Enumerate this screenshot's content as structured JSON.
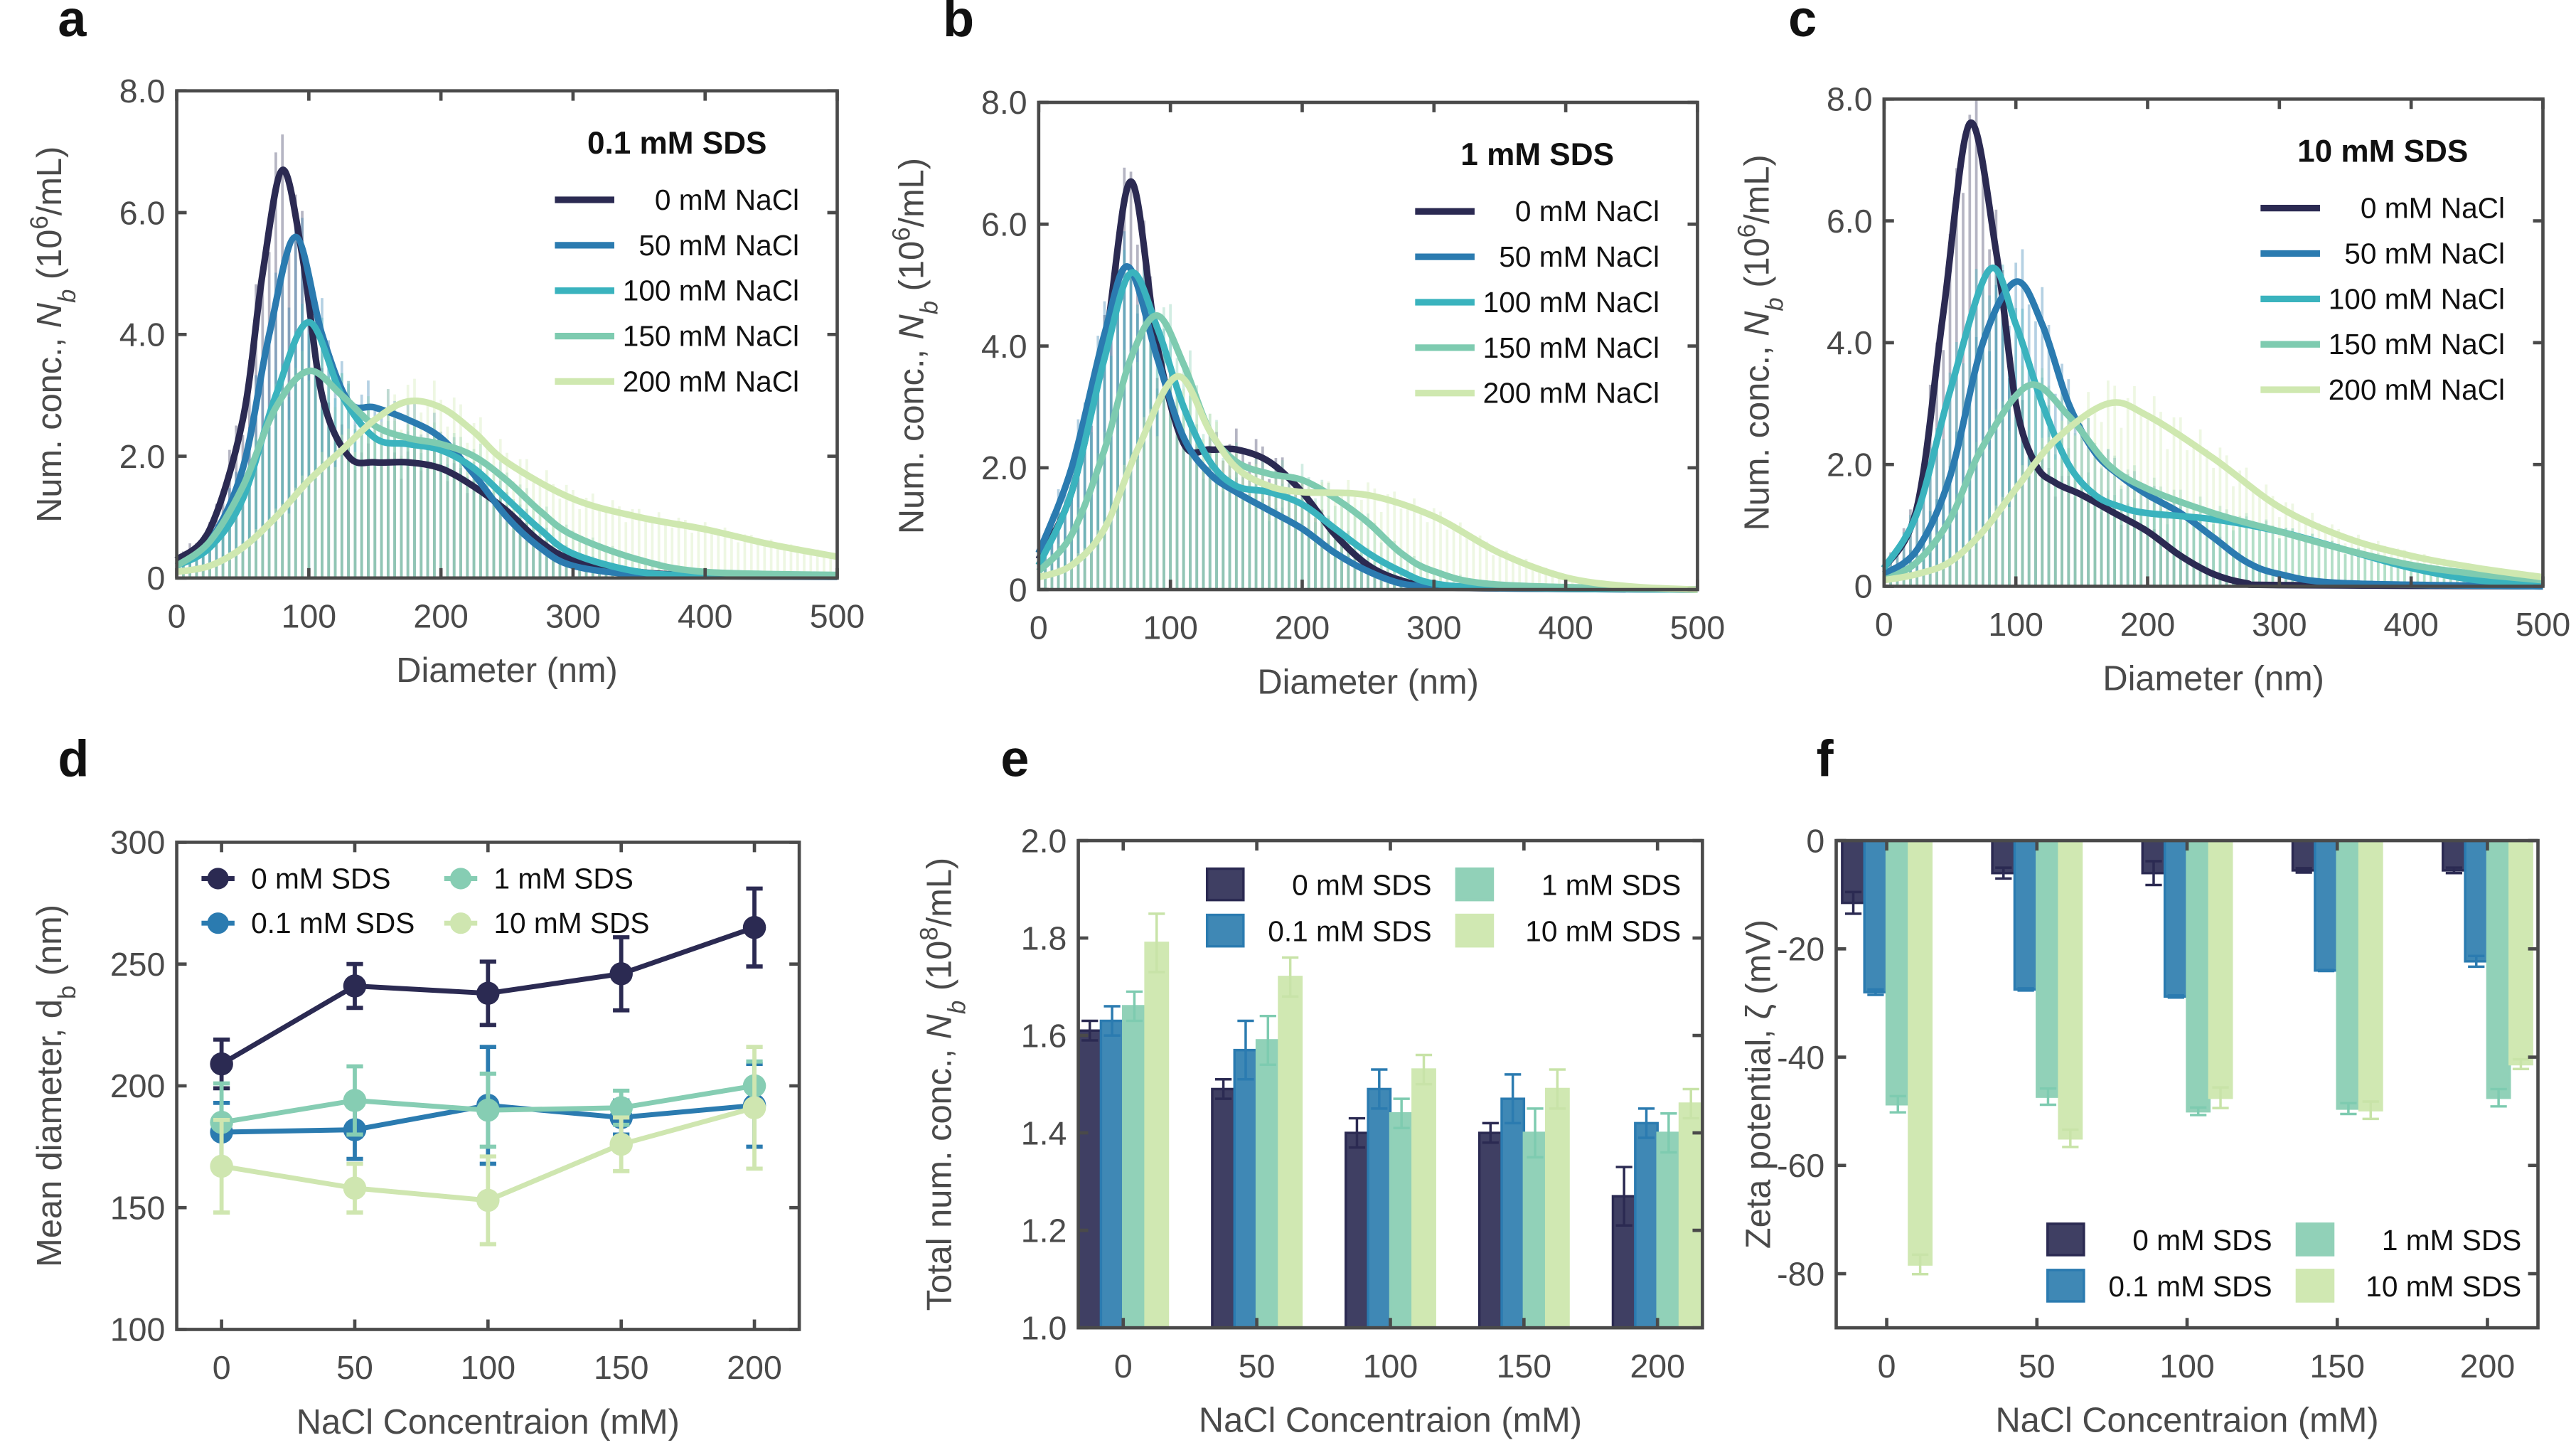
{
  "colors": {
    "0 mM NaCl": "#2b2a52",
    "50 mM NaCl": "#2b7bb0",
    "100 mM NaCl": "#3ab3be",
    "150 mM NaCl": "#7ecbb0",
    "200 mM NaCl": "#cfe8b0",
    "0 mM SDS": "#3f3f63",
    "0.1 mM SDS": "#3f88b5",
    "1 mM SDS": "#91d1b8",
    "10 mM SDS": "#d0e8b2"
  },
  "chart_data": [
    {
      "panel": "a",
      "type": "line",
      "title": "0.1 mM SDS",
      "xlabel": "Diameter (nm)",
      "ylabel": "Num. conc., N_b (10^6/mL)",
      "xlim": [
        0,
        500
      ],
      "ylim": [
        0,
        8
      ],
      "xticks": [
        "0",
        "100",
        "200",
        "300",
        "400",
        "500"
      ],
      "yticks": [
        "0",
        "2.0",
        "4.0",
        "6.0",
        "8.0"
      ],
      "legend": "top-right",
      "series": [
        {
          "name": "0 mM NaCl",
          "x": [
            0,
            25,
            50,
            65,
            80,
            95,
            110,
            130,
            150,
            175,
            200,
            225,
            250,
            275,
            300,
            350,
            400,
            500
          ],
          "y": [
            0.3,
            0.8,
            2.6,
            5.0,
            6.7,
            5.3,
            3.0,
            2.0,
            1.9,
            1.9,
            1.8,
            1.5,
            1.1,
            0.6,
            0.3,
            0.1,
            0.05,
            0.03
          ]
        },
        {
          "name": "50 mM NaCl",
          "x": [
            0,
            25,
            50,
            70,
            90,
            110,
            130,
            150,
            175,
            200,
            225,
            250,
            275,
            300,
            350,
            400,
            500
          ],
          "y": [
            0.2,
            0.6,
            1.8,
            4.0,
            5.6,
            4.0,
            2.9,
            2.8,
            2.6,
            2.3,
            1.7,
            1.0,
            0.5,
            0.2,
            0.05,
            0.03,
            0.02
          ]
        },
        {
          "name": "100 mM NaCl",
          "x": [
            0,
            25,
            50,
            75,
            100,
            125,
            150,
            175,
            200,
            225,
            250,
            275,
            300,
            350,
            400,
            500
          ],
          "y": [
            0.2,
            0.5,
            1.3,
            3.0,
            4.2,
            3.0,
            2.3,
            2.2,
            2.1,
            1.8,
            1.3,
            0.8,
            0.4,
            0.1,
            0.05,
            0.03
          ]
        },
        {
          "name": "150 mM NaCl",
          "x": [
            0,
            25,
            50,
            75,
            100,
            125,
            150,
            175,
            200,
            225,
            250,
            275,
            300,
            350,
            400,
            500
          ],
          "y": [
            0.2,
            0.6,
            1.5,
            2.8,
            3.4,
            3.0,
            2.5,
            2.3,
            2.2,
            2.0,
            1.6,
            1.1,
            0.7,
            0.3,
            0.1,
            0.05
          ]
        },
        {
          "name": "200 mM NaCl",
          "x": [
            0,
            25,
            50,
            75,
            100,
            125,
            150,
            175,
            200,
            225,
            250,
            300,
            350,
            400,
            450,
            500
          ],
          "y": [
            0.1,
            0.2,
            0.5,
            1.0,
            1.6,
            2.1,
            2.6,
            2.9,
            2.8,
            2.4,
            1.9,
            1.3,
            1.0,
            0.8,
            0.55,
            0.35
          ]
        }
      ]
    },
    {
      "panel": "b",
      "type": "line",
      "title": "1 mM SDS",
      "xlabel": "Diameter (nm)",
      "ylabel": "Num. conc., N_b (10^6/mL)",
      "xlim": [
        0,
        500
      ],
      "ylim": [
        0,
        8
      ],
      "xticks": [
        "0",
        "100",
        "200",
        "300",
        "400",
        "500"
      ],
      "yticks": [
        "0",
        "2.0",
        "4.0",
        "6.0",
        "8.0"
      ],
      "legend": "top-right",
      "series": [
        {
          "name": "0 mM NaCl",
          "x": [
            0,
            25,
            50,
            70,
            90,
            110,
            130,
            150,
            175,
            200,
            225,
            250,
            275,
            300,
            350,
            500
          ],
          "y": [
            0.5,
            1.6,
            4.0,
            6.7,
            4.0,
            2.4,
            2.3,
            2.3,
            2.1,
            1.6,
            0.9,
            0.4,
            0.15,
            0.05,
            0.02,
            0
          ]
        },
        {
          "name": "50 mM NaCl",
          "x": [
            0,
            25,
            50,
            68,
            90,
            110,
            130,
            150,
            175,
            200,
            225,
            250,
            275,
            300,
            350,
            500
          ],
          "y": [
            0.6,
            2.0,
            4.2,
            5.3,
            3.8,
            2.5,
            1.9,
            1.6,
            1.3,
            1.0,
            0.6,
            0.3,
            0.1,
            0.05,
            0.02,
            0
          ]
        },
        {
          "name": "100 mM NaCl",
          "x": [
            0,
            25,
            50,
            70,
            90,
            110,
            130,
            150,
            175,
            200,
            225,
            250,
            275,
            300,
            350,
            500
          ],
          "y": [
            0.4,
            1.6,
            3.8,
            5.2,
            4.3,
            3.0,
            2.1,
            1.7,
            1.6,
            1.4,
            1.0,
            0.6,
            0.3,
            0.1,
            0.03,
            0
          ]
        },
        {
          "name": "150 mM NaCl",
          "x": [
            0,
            25,
            50,
            70,
            90,
            110,
            130,
            150,
            175,
            200,
            225,
            250,
            275,
            300,
            350,
            500
          ],
          "y": [
            0.3,
            0.9,
            2.3,
            3.8,
            4.5,
            3.7,
            2.6,
            2.1,
            1.9,
            1.8,
            1.5,
            1.1,
            0.6,
            0.3,
            0.08,
            0
          ]
        },
        {
          "name": "200 mM NaCl",
          "x": [
            0,
            25,
            50,
            75,
            105,
            130,
            150,
            175,
            200,
            250,
            300,
            350,
            400,
            450,
            500
          ],
          "y": [
            0.2,
            0.4,
            1.0,
            2.3,
            3.5,
            2.6,
            2.0,
            1.7,
            1.6,
            1.55,
            1.2,
            0.6,
            0.2,
            0.05,
            0
          ]
        }
      ]
    },
    {
      "panel": "c",
      "type": "line",
      "title": "10 mM SDS",
      "xlabel": "Diameter (nm)",
      "ylabel": "Num. conc., N_b (10^6/mL)",
      "xlim": [
        0,
        500
      ],
      "ylim": [
        0,
        8
      ],
      "xticks": [
        "0",
        "100",
        "200",
        "300",
        "400",
        "500"
      ],
      "yticks": [
        "0",
        "2.0",
        "4.0",
        "6.0",
        "8.0"
      ],
      "legend": "top-right",
      "series": [
        {
          "name": "0 mM NaCl",
          "x": [
            0,
            25,
            45,
            65,
            85,
            100,
            115,
            130,
            150,
            175,
            200,
            225,
            250,
            275,
            300,
            500
          ],
          "y": [
            0.3,
            1.3,
            4.5,
            7.6,
            5.5,
            3.0,
            2.0,
            1.7,
            1.5,
            1.2,
            0.9,
            0.5,
            0.2,
            0.05,
            0.02,
            0
          ]
        },
        {
          "name": "50 mM NaCl",
          "x": [
            0,
            25,
            50,
            75,
            100,
            120,
            140,
            160,
            180,
            200,
            225,
            250,
            275,
            300,
            350,
            500
          ],
          "y": [
            0.2,
            0.6,
            1.8,
            4.0,
            5.0,
            4.3,
            3.0,
            2.2,
            1.8,
            1.5,
            1.2,
            0.8,
            0.4,
            0.2,
            0.05,
            0
          ]
        },
        {
          "name": "100 mM NaCl",
          "x": [
            0,
            25,
            50,
            80,
            100,
            120,
            140,
            160,
            180,
            200,
            250,
            300,
            350,
            400,
            450,
            500
          ],
          "y": [
            0.3,
            1.2,
            3.2,
            5.2,
            4.3,
            3.0,
            2.0,
            1.5,
            1.3,
            1.2,
            1.1,
            0.9,
            0.6,
            0.3,
            0.1,
            0.05
          ]
        },
        {
          "name": "150 mM NaCl",
          "x": [
            0,
            25,
            50,
            75,
            110,
            140,
            170,
            200,
            250,
            300,
            350,
            400,
            450,
            500
          ],
          "y": [
            0.1,
            0.4,
            1.1,
            2.3,
            3.3,
            2.8,
            2.0,
            1.6,
            1.2,
            0.9,
            0.6,
            0.35,
            0.2,
            0.1
          ]
        },
        {
          "name": "200 mM NaCl",
          "x": [
            0,
            25,
            50,
            75,
            100,
            130,
            170,
            200,
            250,
            300,
            350,
            400,
            450,
            500
          ],
          "y": [
            0.1,
            0.2,
            0.4,
            0.9,
            1.6,
            2.4,
            3.0,
            2.8,
            2.1,
            1.3,
            0.8,
            0.5,
            0.3,
            0.15
          ]
        }
      ]
    },
    {
      "panel": "d",
      "type": "line",
      "xlabel": "NaCl Concentraion (mM)",
      "ylabel": "Mean diameter, d_b (nm)",
      "x": [
        0,
        50,
        100,
        150,
        200
      ],
      "ylim": [
        100,
        300
      ],
      "xticks": [
        "0",
        "50",
        "100",
        "150",
        "200"
      ],
      "yticks": [
        "100",
        "150",
        "200",
        "250",
        "300"
      ],
      "legend": "top-left",
      "series": [
        {
          "name": "0 mM SDS",
          "values": [
            209,
            241,
            238,
            246,
            265
          ],
          "error": [
            10,
            9,
            13,
            15,
            16
          ]
        },
        {
          "name": "0.1 mM SDS",
          "values": [
            181,
            182,
            192,
            187,
            192
          ],
          "error": [
            12,
            12,
            24,
            7,
            17
          ]
        },
        {
          "name": "1 mM SDS",
          "values": [
            185,
            194,
            190,
            191,
            200
          ],
          "error": [
            16,
            14,
            15,
            7,
            10
          ]
        },
        {
          "name": "10 mM SDS",
          "values": [
            167,
            158,
            153,
            176,
            191
          ],
          "error": [
            19,
            10,
            18,
            11,
            25
          ]
        }
      ]
    },
    {
      "panel": "e",
      "type": "bar",
      "xlabel": "NaCl Concentraion (mM)",
      "ylabel": "Total num. conc., N_b (10^8/mL)",
      "categories": [
        "0",
        "50",
        "100",
        "150",
        "200"
      ],
      "ylim": [
        1.0,
        2.0
      ],
      "yticks": [
        "1.0",
        "1.2",
        "1.4",
        "1.6",
        "1.8",
        "2.0"
      ],
      "legend": "top-right",
      "series": [
        {
          "name": "0 mM SDS",
          "values": [
            1.61,
            1.49,
            1.4,
            1.4,
            1.27
          ],
          "error": [
            0.02,
            0.02,
            0.03,
            0.02,
            0.06
          ]
        },
        {
          "name": "0.1 mM SDS",
          "values": [
            1.63,
            1.57,
            1.49,
            1.47,
            1.42
          ],
          "error": [
            0.03,
            0.06,
            0.04,
            0.05,
            0.03
          ]
        },
        {
          "name": "1 mM SDS",
          "values": [
            1.66,
            1.59,
            1.44,
            1.4,
            1.4
          ],
          "error": [
            0.03,
            0.05,
            0.03,
            0.05,
            0.04
          ]
        },
        {
          "name": "10 mM SDS",
          "values": [
            1.79,
            1.72,
            1.53,
            1.49,
            1.46
          ],
          "error": [
            0.06,
            0.04,
            0.03,
            0.04,
            0.03
          ]
        }
      ]
    },
    {
      "panel": "f",
      "type": "bar",
      "xlabel": "NaCl Concentraion (mM)",
      "ylabel": "Zeta potential, ζ (mV)",
      "categories": [
        "0",
        "50",
        "100",
        "150",
        "200"
      ],
      "ylim": [
        -90,
        0
      ],
      "yticks": [
        "-80",
        "-60",
        "-40",
        "-20",
        "0"
      ],
      "legend": "bottom-right",
      "series": [
        {
          "name": "0 mM SDS",
          "values": [
            -11.5,
            -6,
            -6,
            -5.5,
            -5.5
          ],
          "error": [
            2,
            1,
            2.2,
            0.4,
            0.5
          ]
        },
        {
          "name": "0.1 mM SDS",
          "values": [
            -28,
            -27.5,
            -28.8,
            -24,
            -22.3
          ],
          "error": [
            0.5,
            0.2,
            0.2,
            0.1,
            1
          ]
        },
        {
          "name": "1 mM SDS",
          "values": [
            -48.7,
            -47.3,
            -50,
            -49.5,
            -47.5
          ],
          "error": [
            1.5,
            1.5,
            0.7,
            1,
            1.6
          ]
        },
        {
          "name": "10 mM SDS",
          "values": [
            -78.3,
            -55,
            -47.5,
            -49.8,
            -41.3
          ],
          "error": [
            1.8,
            1.6,
            1.9,
            1.6,
            0.9
          ]
        }
      ]
    }
  ]
}
